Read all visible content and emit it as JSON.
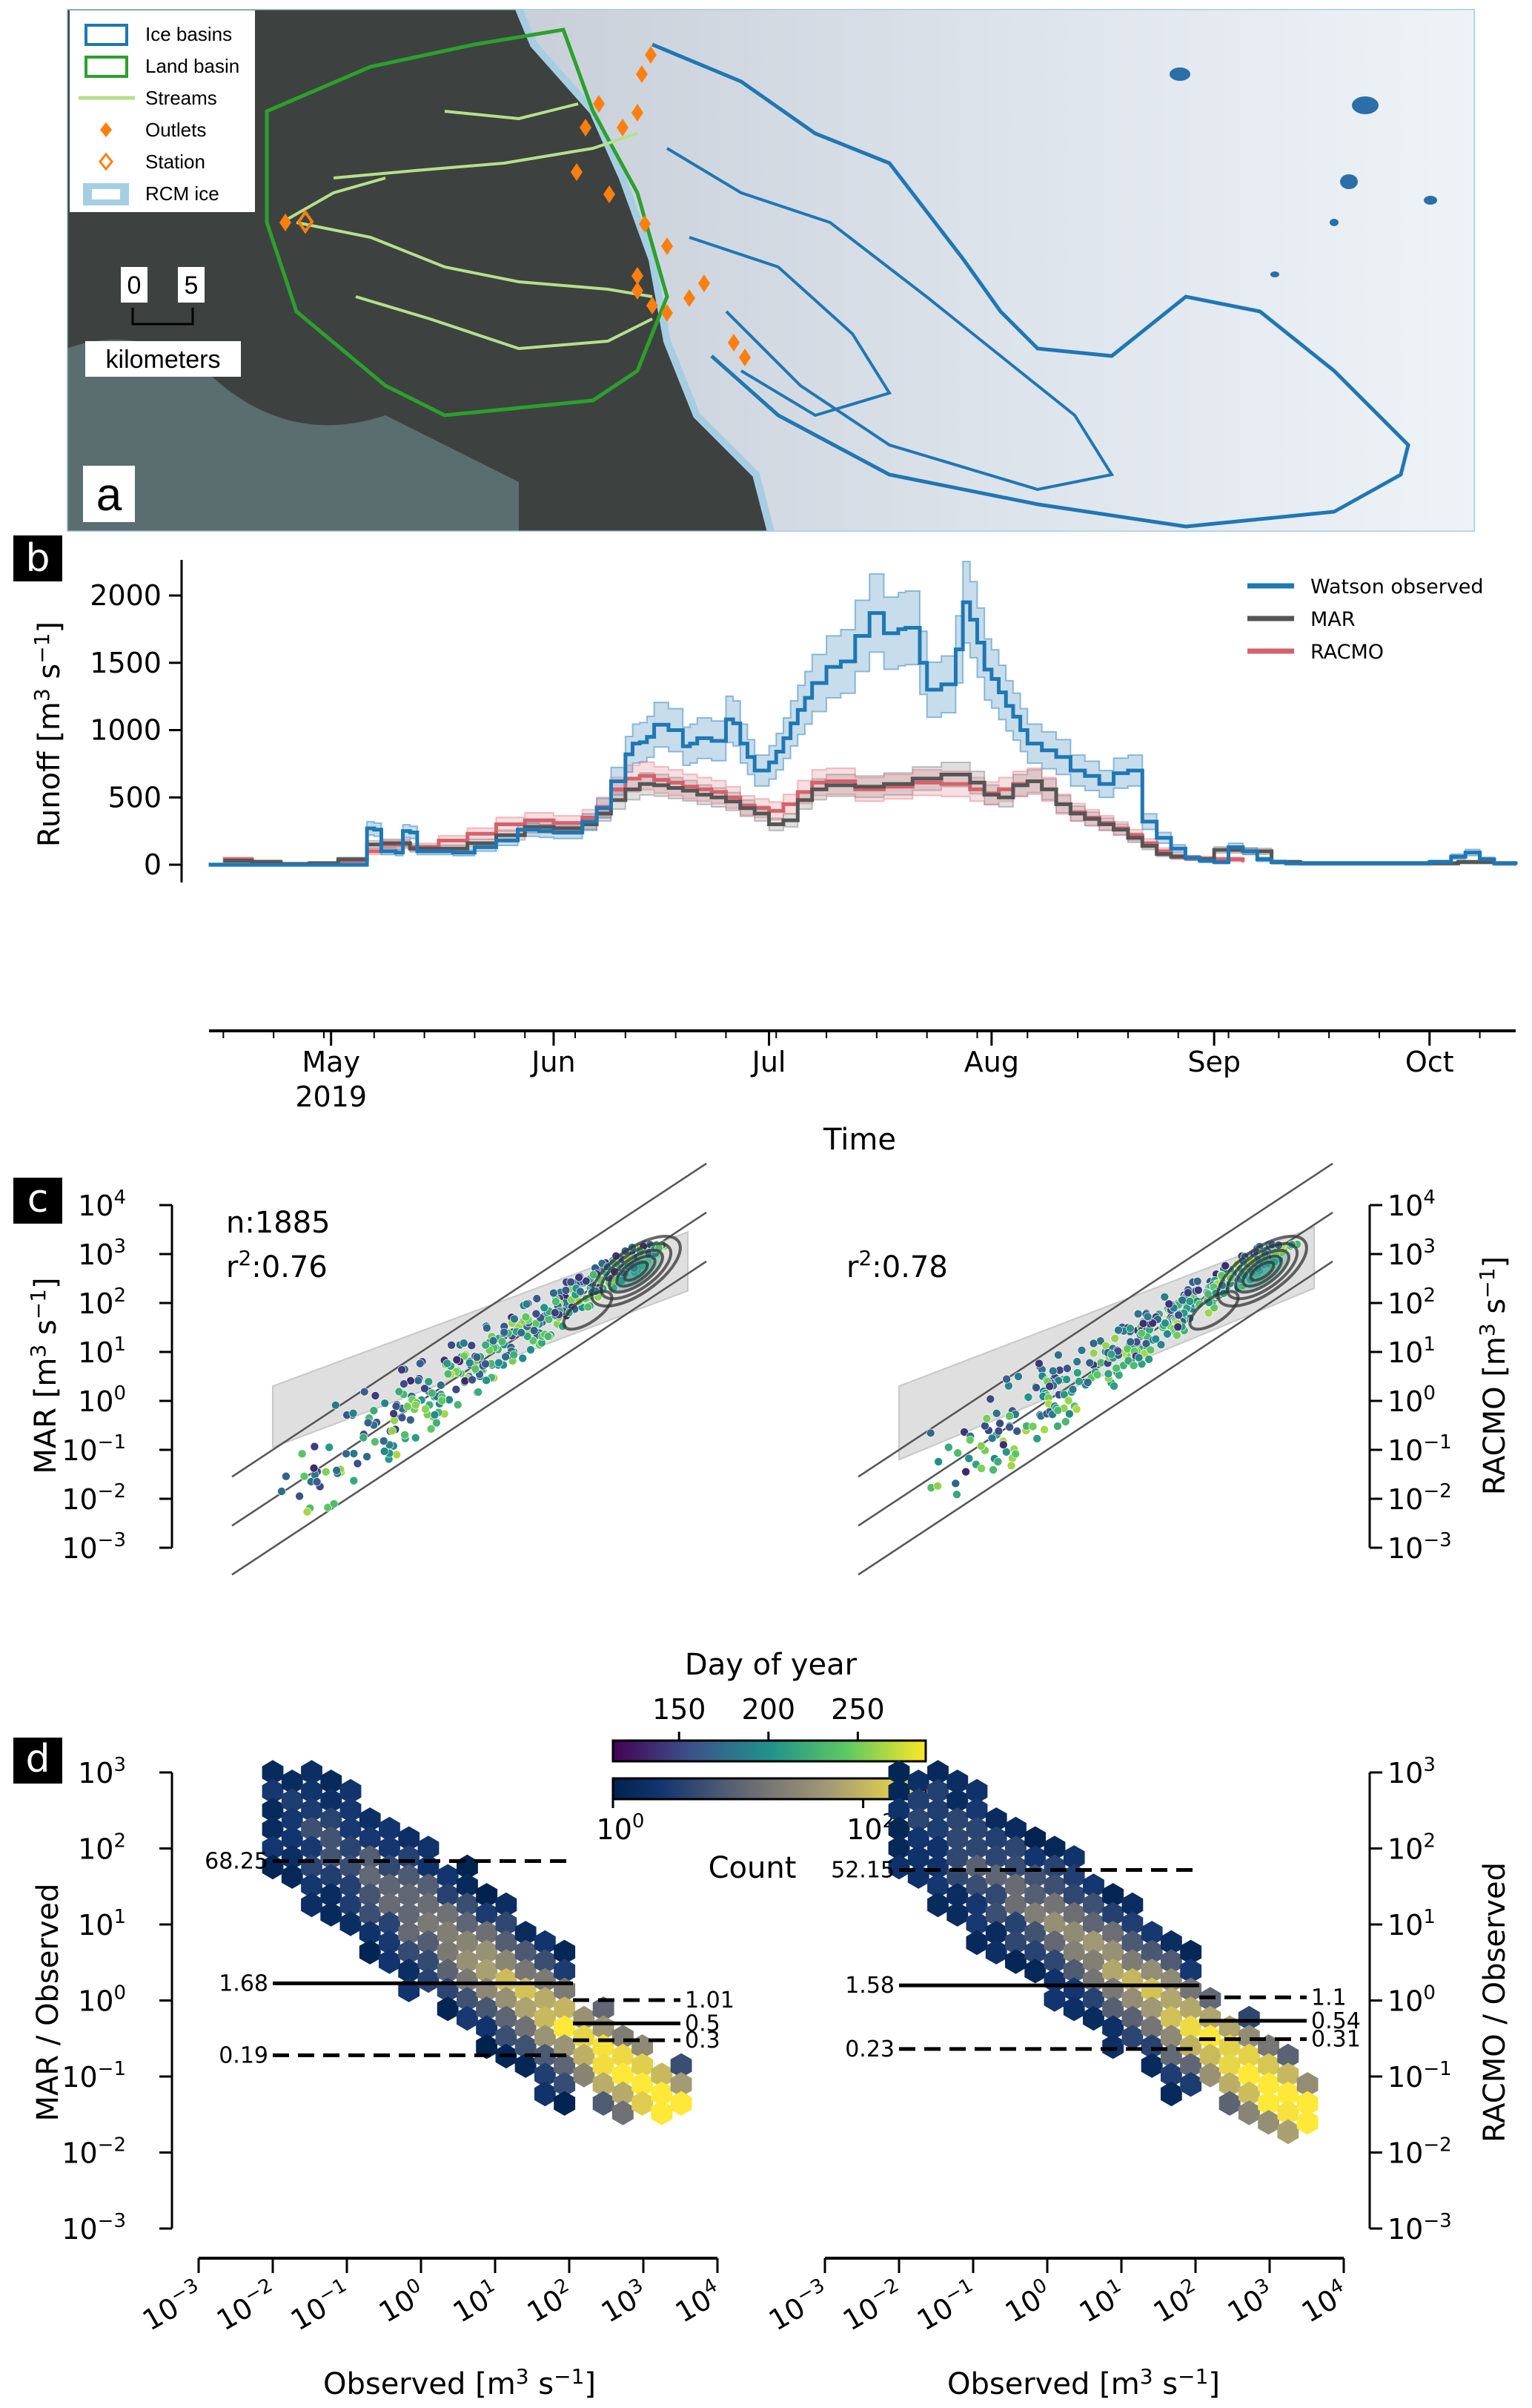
{
  "figure": {
    "panel_labels": [
      "a",
      "b",
      "c",
      "d"
    ]
  },
  "map_panel": {
    "legend": [
      {
        "label": "Ice basins",
        "symbol": "rect-outline",
        "color": "#1f77b4"
      },
      {
        "label": "Land basin",
        "symbol": "rect-outline",
        "color": "#2ca02c"
      },
      {
        "label": "Streams",
        "symbol": "line",
        "color": "#b5e08a"
      },
      {
        "label": "Outlets",
        "symbol": "filled-diamond",
        "color": "#ff7f0e"
      },
      {
        "label": "Station",
        "symbol": "open-diamond",
        "color": "#ff7f0e"
      },
      {
        "label": "RCM ice",
        "symbol": "rect-outline-thick",
        "color": "#a6cee3"
      }
    ],
    "scale_bar": {
      "start_label": "0",
      "end_label": "5",
      "unit_label": "kilometers"
    },
    "colors": {
      "land": "#3b3f3f",
      "ice": "#dfe6ef",
      "ice_basin": "#1f77b4",
      "land_basin": "#2ca02c",
      "stream": "#b5e08a",
      "outlet": "#ff7f0e",
      "lake": "#2a6fa8"
    }
  },
  "chart_data": [
    {
      "id": "b",
      "type": "line",
      "title": "",
      "xlabel": "Time",
      "ylabel": "Runoff [m3 s-1]",
      "ylabel_parts": {
        "main": "Runoff [m",
        "sup1": "3",
        "mid": " s",
        "sup2": "−1",
        "end": "]"
      },
      "xlim_doy": [
        104,
        286
      ],
      "ylim": [
        -100,
        2300
      ],
      "yticks": [
        0,
        500,
        1000,
        1500,
        2000
      ],
      "xticks": [
        {
          "label": "May",
          "sublabel": "2019",
          "doy": 121
        },
        {
          "label": "Jun",
          "sublabel": "",
          "doy": 152
        },
        {
          "label": "Jul",
          "sublabel": "",
          "doy": 182
        },
        {
          "label": "Aug",
          "sublabel": "",
          "doy": 213
        },
        {
          "label": "Sep",
          "sublabel": "",
          "doy": 244
        },
        {
          "label": "Oct",
          "sublabel": "",
          "doy": 274
        }
      ],
      "legend_position": "top-right",
      "series": [
        {
          "name": "Watson observed",
          "color": "#1f77b4",
          "band_color": "#1f77b4",
          "x_doy": [
            104,
            107,
            110,
            117,
            120,
            124,
            125,
            126,
            127,
            128,
            130,
            131,
            132,
            133,
            135,
            138,
            141,
            144,
            147,
            150,
            152,
            154,
            156,
            158,
            160,
            162,
            163,
            164,
            165,
            166,
            168,
            170,
            171,
            172,
            174,
            176,
            177,
            178,
            179,
            180,
            181,
            182,
            183,
            184,
            185,
            186,
            187,
            188,
            190,
            192,
            194,
            196,
            198,
            200,
            201,
            202,
            203,
            204,
            206,
            208,
            209,
            210,
            211,
            212,
            213,
            214,
            215,
            216,
            217,
            218,
            220,
            222,
            224,
            226,
            228,
            230,
            232,
            234,
            236,
            238,
            240,
            242,
            244,
            246,
            248,
            250,
            252,
            254,
            256,
            260,
            265,
            270,
            274,
            277,
            279,
            281,
            283,
            286
          ],
          "y": [
            0,
            0,
            0,
            0,
            0,
            0,
            0,
            270,
            260,
            100,
            90,
            250,
            240,
            100,
            100,
            90,
            130,
            180,
            260,
            250,
            240,
            240,
            320,
            420,
            620,
            820,
            900,
            910,
            950,
            1040,
            1000,
            880,
            900,
            940,
            920,
            1080,
            1050,
            900,
            800,
            700,
            700,
            760,
            840,
            940,
            1050,
            1150,
            1240,
            1350,
            1470,
            1510,
            1700,
            1870,
            1720,
            1750,
            1760,
            1760,
            1500,
            1300,
            1340,
            1600,
            1950,
            1820,
            1650,
            1450,
            1380,
            1280,
            1180,
            1100,
            1000,
            900,
            850,
            800,
            700,
            660,
            600,
            680,
            700,
            320,
            200,
            120,
            50,
            30,
            20,
            130,
            100,
            40,
            20,
            10,
            10,
            10,
            10,
            10,
            20,
            60,
            90,
            40,
            10,
            0
          ],
          "band_halfwidth_frac": 0.15
        },
        {
          "name": "MAR",
          "color": "#555555",
          "band_color": "#7f7f7f",
          "x_doy": [
            106,
            110,
            114,
            118,
            122,
            126,
            128,
            132,
            136,
            140,
            144,
            148,
            152,
            156,
            158,
            160,
            162,
            164,
            166,
            168,
            170,
            172,
            174,
            176,
            178,
            180,
            182,
            184,
            186,
            188,
            190,
            194,
            198,
            202,
            206,
            210,
            212,
            214,
            216,
            218,
            220,
            222,
            224,
            226,
            228,
            230,
            232,
            234,
            236,
            238,
            240,
            242,
            244,
            248,
            252,
            256,
            260,
            265,
            270,
            274,
            278,
            281,
            283,
            286
          ],
          "y": [
            30,
            20,
            5,
            10,
            40,
            150,
            160,
            120,
            120,
            160,
            220,
            280,
            270,
            300,
            380,
            480,
            560,
            600,
            590,
            570,
            550,
            520,
            500,
            470,
            420,
            380,
            300,
            330,
            480,
            560,
            590,
            580,
            600,
            640,
            670,
            610,
            520,
            500,
            590,
            620,
            560,
            450,
            380,
            340,
            300,
            260,
            200,
            140,
            80,
            60,
            50,
            40,
            110,
            100,
            20,
            10,
            10,
            10,
            10,
            10,
            20,
            20,
            10,
            0
          ],
          "band_halfwidth_frac": 0.12
        },
        {
          "name": "RACMO",
          "color": "#d6616b",
          "band_color": "#e07b85",
          "x_doy": [
            106,
            110,
            114,
            118,
            122,
            126,
            128,
            132,
            136,
            140,
            144,
            148,
            152,
            156,
            158,
            160,
            162,
            164,
            166,
            168,
            170,
            172,
            174,
            176,
            178,
            180,
            182,
            184,
            186,
            188,
            190,
            194,
            198,
            202,
            206,
            210,
            212,
            214,
            216,
            218,
            220,
            222,
            224,
            226,
            228,
            230,
            232,
            234,
            236,
            238,
            240,
            242,
            244,
            248
          ],
          "y": [
            40,
            20,
            5,
            10,
            30,
            100,
            150,
            130,
            180,
            230,
            300,
            330,
            310,
            350,
            430,
            560,
            640,
            660,
            630,
            610,
            580,
            560,
            540,
            500,
            440,
            420,
            400,
            450,
            540,
            610,
            620,
            560,
            580,
            610,
            600,
            560,
            530,
            560,
            600,
            620,
            560,
            450,
            390,
            350,
            310,
            270,
            220,
            160,
            100,
            60,
            50,
            45,
            40,
            20
          ],
          "band_halfwidth_frac": 0.14
        }
      ]
    },
    {
      "id": "c-left",
      "type": "scatter",
      "xlabel": "",
      "ylabel": "MAR [m3 s-1]",
      "ylabel_parts": {
        "main": "MAR [m",
        "sup1": "3",
        "mid": " s",
        "sup2": "−1",
        "end": "]"
      },
      "xscale": "log",
      "yscale": "log",
      "xlim_exp": [
        -3,
        4
      ],
      "ylim_exp": [
        -3,
        4
      ],
      "yticks_exp": [
        -3,
        -2,
        -1,
        0,
        1,
        2,
        3,
        4
      ],
      "annotations": [
        "n:1885",
        "r2:0.76"
      ],
      "n": 1885,
      "r2": 0.76,
      "reference_lines": [
        {
          "factor_exp": 1
        },
        {
          "factor_exp": 0
        },
        {
          "factor_exp": -1
        }
      ],
      "band": {
        "x_exp": [
          -2,
          3.6
        ],
        "lower_at_start_exp": -0.95,
        "upper_at_start_exp": 0.3,
        "lower_at_end_exp": 2.25,
        "upper_at_end_exp": 3.45
      },
      "colorby": "Day of year",
      "points_summary": "scatter of 1885 daily points coloured by day-of-year, concentrated near 1:1 around 10^2-10^3"
    },
    {
      "id": "c-right",
      "type": "scatter",
      "xlabel": "",
      "ylabel": "RACMO [m3 s-1]",
      "ylabel_parts": {
        "main": "RACMO [m",
        "sup1": "3",
        "mid": " s",
        "sup2": "−1",
        "end": "]"
      },
      "xscale": "log",
      "yscale": "log",
      "xlim_exp": [
        -3,
        4
      ],
      "ylim_exp": [
        -3,
        4
      ],
      "yticks_exp": [
        -3,
        -2,
        -1,
        0,
        1,
        2,
        3,
        4
      ],
      "annotations": [
        "r2:0.78"
      ],
      "r2": 0.78,
      "reference_lines": [
        {
          "factor_exp": 1
        },
        {
          "factor_exp": 0
        },
        {
          "factor_exp": -1
        }
      ],
      "band": {
        "x_exp": [
          -2,
          3.6
        ],
        "lower_at_start_exp": -1.2,
        "upper_at_start_exp": 0.3,
        "lower_at_end_exp": 2.3,
        "upper_at_end_exp": 3.55
      },
      "colorby": "Day of year"
    },
    {
      "id": "colorbars",
      "type": "heatmap",
      "day_of_year": {
        "label": "Day of year",
        "ticks": [
          150,
          200,
          250
        ],
        "range": [
          113,
          288
        ]
      },
      "count": {
        "label": "Count",
        "ticks": [
          {
            "exp": 0,
            "text": "10",
            "sup": "0"
          },
          {
            "exp": 2,
            "text": "10",
            "sup": "2"
          }
        ],
        "range_exp": [
          0,
          2.5
        ]
      }
    },
    {
      "id": "d-left",
      "type": "heatmap",
      "xlabel": "Observed [m3 s-1]",
      "ylabel": "MAR / Observed",
      "xscale": "log",
      "yscale": "log",
      "xlim_exp": [
        -3,
        4
      ],
      "ylim_exp": [
        -3,
        3
      ],
      "xticks_exp": [
        -3,
        -2,
        -1,
        0,
        1,
        2,
        3,
        4
      ],
      "yticks_exp": [
        -3,
        -2,
        -1,
        0,
        1,
        2,
        3
      ],
      "hlines": [
        {
          "value": 68.25,
          "label": "68.25",
          "style": "dashed",
          "x_exp": [
            -2,
            2.05
          ],
          "label_side": "left"
        },
        {
          "value": 1.68,
          "label": "1.68",
          "style": "solid",
          "x_exp": [
            -2,
            2.05
          ],
          "label_side": "left"
        },
        {
          "value": 0.19,
          "label": "0.19",
          "style": "dashed",
          "x_exp": [
            -2,
            2.05
          ],
          "label_side": "left"
        },
        {
          "value": 1.01,
          "label": "1.01",
          "style": "dashed",
          "x_exp": [
            2.05,
            3.5
          ],
          "label_side": "right"
        },
        {
          "value": 0.5,
          "label": "0.5",
          "style": "solid",
          "x_exp": [
            2.05,
            3.5
          ],
          "label_side": "right"
        },
        {
          "value": 0.3,
          "label": "0.3",
          "style": "dashed",
          "x_exp": [
            2.05,
            3.5
          ],
          "label_side": "right"
        }
      ]
    },
    {
      "id": "d-right",
      "type": "heatmap",
      "xlabel": "Observed [m3 s-1]",
      "ylabel": "RACMO / Observed",
      "xscale": "log",
      "yscale": "log",
      "xlim_exp": [
        -3,
        4
      ],
      "ylim_exp": [
        -3,
        3
      ],
      "xticks_exp": [
        -3,
        -2,
        -1,
        0,
        1,
        2,
        3,
        4
      ],
      "yticks_exp": [
        -3,
        -2,
        -1,
        0,
        1,
        2,
        3
      ],
      "hlines": [
        {
          "value": 52.15,
          "label": "52.15",
          "style": "dashed",
          "x_exp": [
            -2,
            2.05
          ],
          "label_side": "left"
        },
        {
          "value": 1.58,
          "label": "1.58",
          "style": "solid",
          "x_exp": [
            -2,
            2.05
          ],
          "label_side": "left"
        },
        {
          "value": 0.23,
          "label": "0.23",
          "style": "dashed",
          "x_exp": [
            -2,
            2.05
          ],
          "label_side": "left"
        },
        {
          "value": 1.1,
          "label": "1.1",
          "style": "dashed",
          "x_exp": [
            2.05,
            3.5
          ],
          "label_side": "right"
        },
        {
          "value": 0.54,
          "label": "0.54",
          "style": "solid",
          "x_exp": [
            2.05,
            3.5
          ],
          "label_side": "right"
        },
        {
          "value": 0.31,
          "label": "0.31",
          "style": "dashed",
          "x_exp": [
            2.05,
            3.5
          ],
          "label_side": "right"
        }
      ]
    }
  ],
  "labels": {
    "time_axis": "Time",
    "observed_axis": {
      "main": "Observed [m",
      "sup1": "3",
      "mid": " s",
      "sup2": "−1",
      "end": "]"
    },
    "mar_ratio": "MAR / Observed",
    "racmo_ratio": "RACMO / Observed",
    "n_text": "n:1885",
    "r2_left": {
      "pre": "r",
      "sup": "2",
      "post": ":0.76"
    },
    "r2_right": {
      "pre": "r",
      "sup": "2",
      "post": ":0.78"
    },
    "doy_label": "Day of year",
    "count_label": "Count"
  }
}
